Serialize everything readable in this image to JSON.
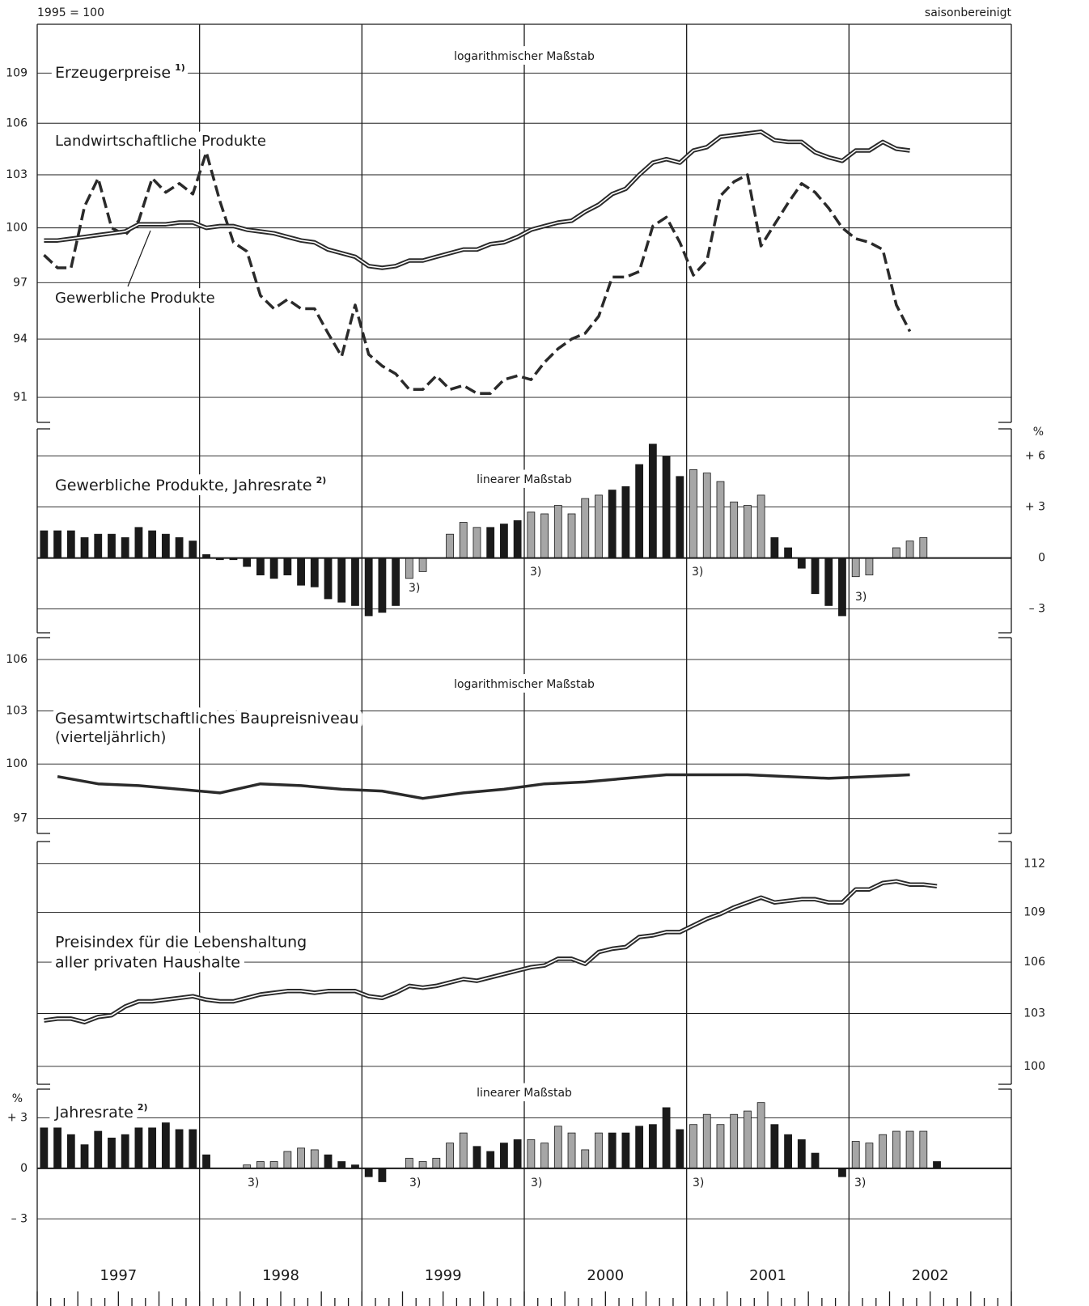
{
  "header": {
    "left": "1995 = 100",
    "right": "saisonbereinigt"
  },
  "x_axis": {
    "years": [
      "1997",
      "1998",
      "1999",
      "2000",
      "2001",
      "2002"
    ]
  },
  "chart_data": [
    {
      "type": "line",
      "title": "Erzeugerpreise",
      "title_note": "1)",
      "scale_note": "logarithmischer Maßstab",
      "log_scale": true,
      "frequency": "monthly",
      "axis_side": "left",
      "grid": true,
      "ylim": [
        89.74,
        112
      ],
      "yticks": [
        91,
        94,
        97,
        100,
        103,
        106,
        109
      ],
      "series": [
        {
          "name": "Landwirtschaftliche Produkte",
          "color": "#2a2a2a",
          "style": "dashed",
          "values": [
            98.5,
            97.8,
            97.8,
            101.2,
            102.8,
            100.0,
            99.6,
            100.4,
            102.8,
            102.0,
            102.5,
            101.9,
            104.3,
            101.5,
            99.2,
            98.7,
            96.3,
            95.6,
            96.1,
            95.6,
            95.6,
            94.3,
            93.1,
            95.8,
            93.2,
            92.6,
            92.2,
            91.4,
            91.4,
            92.1,
            91.4,
            91.6,
            91.2,
            91.2,
            91.9,
            92.1,
            91.9,
            92.8,
            93.5,
            94.0,
            94.3,
            95.2,
            97.3,
            97.3,
            97.6,
            100.1,
            100.6,
            99.2,
            97.4,
            98.2,
            101.8,
            102.6,
            103.0,
            99.0,
            100.2,
            101.4,
            102.5,
            102.0,
            101.1,
            100.0,
            99.4,
            99.2,
            98.8,
            95.8,
            94.4
          ]
        },
        {
          "name": "Gewerbliche Produkte",
          "color": "#2a2a2a",
          "style": "double",
          "values": [
            99.3,
            99.3,
            99.4,
            99.5,
            99.6,
            99.7,
            99.8,
            100.2,
            100.2,
            100.2,
            100.3,
            100.3,
            100.0,
            100.1,
            100.1,
            99.9,
            99.8,
            99.7,
            99.5,
            99.3,
            99.2,
            98.8,
            98.6,
            98.4,
            97.9,
            97.8,
            97.9,
            98.2,
            98.2,
            98.4,
            98.6,
            98.8,
            98.8,
            99.1,
            99.2,
            99.5,
            99.9,
            100.1,
            100.3,
            100.4,
            100.9,
            101.3,
            101.9,
            102.2,
            103.0,
            103.7,
            103.9,
            103.7,
            104.4,
            104.6,
            105.2,
            105.3,
            105.4,
            105.5,
            105.0,
            104.9,
            104.9,
            104.3,
            104.0,
            103.8,
            104.4,
            104.4,
            104.9,
            104.5,
            104.4
          ]
        }
      ]
    },
    {
      "type": "bar",
      "title": "Gewerbliche Produkte, Jahresrate",
      "title_note": "2)",
      "scale_note": "linearer Maßstab",
      "y_unit": "%",
      "frequency": "monthly",
      "axis_side": "right",
      "grid": true,
      "ylim": [
        -4.4,
        7.6
      ],
      "yticks": [
        {
          "value": 6,
          "label": "+ 6"
        },
        {
          "value": 3,
          "label": "+ 3"
        },
        0,
        {
          "value": -3,
          "label": "– 3"
        }
      ],
      "values": [
        1.6,
        1.6,
        1.6,
        1.2,
        1.4,
        1.4,
        1.2,
        1.8,
        1.6,
        1.4,
        1.2,
        1.0,
        0.2,
        -0.1,
        -0.1,
        -0.5,
        -1.0,
        -1.2,
        -1.0,
        -1.6,
        -1.7,
        -2.4,
        -2.6,
        -2.8,
        -3.4,
        -3.2,
        -2.8,
        -1.2,
        -0.8,
        0,
        1.4,
        2.1,
        1.8,
        1.8,
        2.0,
        2.2,
        2.7,
        2.6,
        3.1,
        2.6,
        3.5,
        3.7,
        4.0,
        4.2,
        5.5,
        6.7,
        6.0,
        4.8,
        5.2,
        5.0,
        4.5,
        3.3,
        3.1,
        3.7,
        1.2,
        0.6,
        -0.6,
        -2.1,
        -2.8,
        -3.4,
        -1.1,
        -1.0,
        0,
        0.6,
        1.0,
        1.2
      ],
      "colors": [
        "#1a1a1a",
        "#1a1a1a",
        "#1a1a1a",
        "#1a1a1a",
        "#1a1a1a",
        "#1a1a1a",
        "#1a1a1a",
        "#1a1a1a",
        "#1a1a1a",
        "#1a1a1a",
        "#1a1a1a",
        "#1a1a1a",
        "#1a1a1a",
        "#1a1a1a",
        "#1a1a1a",
        "#1a1a1a",
        "#1a1a1a",
        "#1a1a1a",
        "#1a1a1a",
        "#1a1a1a",
        "#1a1a1a",
        "#1a1a1a",
        "#1a1a1a",
        "#1a1a1a",
        "#1a1a1a",
        "#1a1a1a",
        "#1a1a1a",
        "#a6a6a6",
        "#a6a6a6",
        "#a6a6a6",
        "#a6a6a6",
        "#a6a6a6",
        "#a6a6a6",
        "#1a1a1a",
        "#1a1a1a",
        "#1a1a1a",
        "#a6a6a6",
        "#a6a6a6",
        "#a6a6a6",
        "#a6a6a6",
        "#a6a6a6",
        "#a6a6a6",
        "#1a1a1a",
        "#1a1a1a",
        "#1a1a1a",
        "#1a1a1a",
        "#1a1a1a",
        "#1a1a1a",
        "#a6a6a6",
        "#a6a6a6",
        "#a6a6a6",
        "#a6a6a6",
        "#a6a6a6",
        "#a6a6a6",
        "#1a1a1a",
        "#1a1a1a",
        "#1a1a1a",
        "#1a1a1a",
        "#1a1a1a",
        "#1a1a1a",
        "#a6a6a6",
        "#a6a6a6",
        "#a6a6a6",
        "#a6a6a6",
        "#a6a6a6",
        "#a6a6a6"
      ],
      "annotations": [
        "3)",
        "3)",
        "3)",
        "3)"
      ]
    },
    {
      "type": "line",
      "title": "Gesamtwirtschaftliches Baupreisniveau",
      "subtitle": "(vierteljährlich)",
      "scale_note": "logarithmischer Maßstab",
      "log_scale": true,
      "frequency": "quarterly",
      "axis_side": "left",
      "grid": true,
      "ylim": [
        96.2,
        107.3
      ],
      "yticks": [
        97,
        100,
        103,
        106
      ],
      "color": "#2a2a2a",
      "style": "solid",
      "values": [
        99.3,
        98.9,
        98.8,
        98.6,
        98.4,
        98.9,
        98.8,
        98.6,
        98.5,
        98.1,
        98.4,
        98.6,
        98.9,
        99.0,
        99.2,
        99.4,
        99.4,
        99.4,
        99.3,
        99.2,
        99.3,
        99.4
      ]
    },
    {
      "type": "line",
      "title": [
        "Preisindex für die Lebenshaltung",
        "aller privaten Haushalte"
      ],
      "log_scale": true,
      "frequency": "monthly",
      "axis_side": "right",
      "grid": true,
      "ylim": [
        99.0,
        113.4
      ],
      "yticks": [
        100,
        103,
        106,
        109,
        112
      ],
      "color": "#2a2a2a",
      "style": "double",
      "values": [
        102.6,
        102.7,
        102.7,
        102.5,
        102.8,
        102.9,
        103.4,
        103.7,
        103.7,
        103.8,
        103.9,
        104.0,
        103.8,
        103.7,
        103.7,
        103.9,
        104.1,
        104.2,
        104.3,
        104.3,
        104.2,
        104.3,
        104.3,
        104.3,
        104.0,
        103.9,
        104.2,
        104.6,
        104.5,
        104.6,
        104.8,
        105.0,
        104.9,
        105.1,
        105.3,
        105.5,
        105.7,
        105.8,
        106.2,
        106.2,
        105.9,
        106.6,
        106.8,
        106.9,
        107.5,
        107.6,
        107.8,
        107.8,
        108.2,
        108.6,
        108.9,
        109.3,
        109.6,
        109.9,
        109.6,
        109.7,
        109.8,
        109.8,
        109.6,
        109.6,
        110.4,
        110.4,
        110.8,
        110.9,
        110.7,
        110.7,
        110.6
      ]
    },
    {
      "type": "bar",
      "title": "Jahresrate",
      "title_note": "2)",
      "scale_note": "linearer Maßstab",
      "y_unit": "%",
      "frequency": "monthly",
      "axis_side": "left",
      "grid": true,
      "ylim": [
        -5.1,
        4.7
      ],
      "yticks": [
        {
          "value": 3,
          "label": "+ 3"
        },
        0,
        {
          "value": -3,
          "label": "– 3"
        }
      ],
      "values": [
        2.4,
        2.4,
        2.0,
        1.4,
        2.2,
        1.8,
        2.0,
        2.4,
        2.4,
        2.7,
        2.3,
        2.3,
        0.8,
        0,
        0,
        0.2,
        0.4,
        0.4,
        1.0,
        1.2,
        1.1,
        0.8,
        0.4,
        0.2,
        -0.5,
        -0.8,
        0,
        0.6,
        0.4,
        0.6,
        1.5,
        2.1,
        1.3,
        1.0,
        1.5,
        1.7,
        1.7,
        1.5,
        2.5,
        2.1,
        1.1,
        2.1,
        2.1,
        2.1,
        2.5,
        2.6,
        3.6,
        2.3,
        2.6,
        3.2,
        2.6,
        3.2,
        3.4,
        3.9,
        2.6,
        2.0,
        1.7,
        0.9,
        0,
        -0.5,
        1.6,
        1.5,
        2.0,
        2.2,
        2.2,
        2.2,
        0.4
      ],
      "colors": [
        "#1a1a1a",
        "#1a1a1a",
        "#1a1a1a",
        "#1a1a1a",
        "#1a1a1a",
        "#1a1a1a",
        "#1a1a1a",
        "#1a1a1a",
        "#1a1a1a",
        "#1a1a1a",
        "#1a1a1a",
        "#1a1a1a",
        "#1a1a1a",
        "#a6a6a6",
        "#a6a6a6",
        "#a6a6a6",
        "#a6a6a6",
        "#a6a6a6",
        "#a6a6a6",
        "#a6a6a6",
        "#a6a6a6",
        "#1a1a1a",
        "#1a1a1a",
        "#1a1a1a",
        "#1a1a1a",
        "#1a1a1a",
        "#a6a6a6",
        "#a6a6a6",
        "#a6a6a6",
        "#a6a6a6",
        "#a6a6a6",
        "#a6a6a6",
        "#1a1a1a",
        "#1a1a1a",
        "#1a1a1a",
        "#1a1a1a",
        "#a6a6a6",
        "#a6a6a6",
        "#a6a6a6",
        "#a6a6a6",
        "#a6a6a6",
        "#a6a6a6",
        "#1a1a1a",
        "#1a1a1a",
        "#1a1a1a",
        "#1a1a1a",
        "#1a1a1a",
        "#1a1a1a",
        "#a6a6a6",
        "#a6a6a6",
        "#a6a6a6",
        "#a6a6a6",
        "#a6a6a6",
        "#a6a6a6",
        "#1a1a1a",
        "#1a1a1a",
        "#1a1a1a",
        "#1a1a1a",
        "#1a1a1a",
        "#1a1a1a",
        "#a6a6a6",
        "#a6a6a6",
        "#a6a6a6",
        "#a6a6a6",
        "#a6a6a6",
        "#a6a6a6",
        "#1a1a1a"
      ],
      "annotations": [
        "3)",
        "3)",
        "3)",
        "3)",
        "3)"
      ]
    }
  ]
}
